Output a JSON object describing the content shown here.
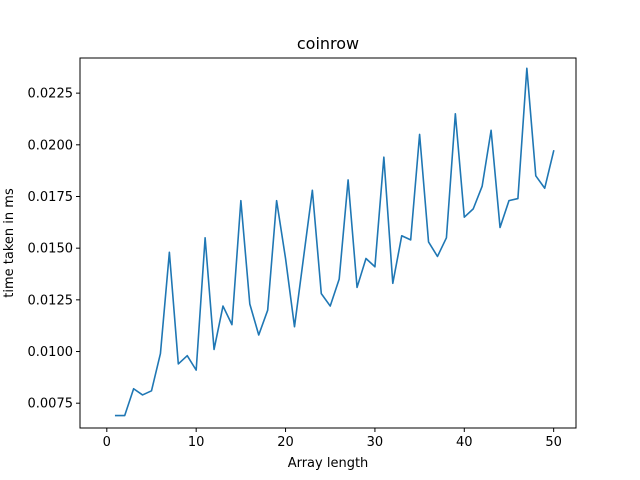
{
  "chart_data": {
    "type": "line",
    "title": "coinrow",
    "xlabel": "Array length",
    "ylabel": "time taken in ms",
    "xlim": [
      -3.0,
      52.5
    ],
    "ylim": [
      0.0063,
      0.0242
    ],
    "xticks": [
      0,
      10,
      20,
      30,
      40,
      50
    ],
    "yticks": [
      0.0075,
      0.01,
      0.0125,
      0.015,
      0.0175,
      0.02,
      0.0225
    ],
    "ytick_labels": [
      "0.0075",
      "0.0100",
      "0.0125",
      "0.0150",
      "0.0175",
      "0.0200",
      "0.0225"
    ],
    "grid": false,
    "line_color": "#1f77b4",
    "series": [
      {
        "x": [
          1,
          2,
          3,
          4,
          5,
          6,
          7,
          8,
          9,
          10,
          11,
          12,
          13,
          14,
          15,
          16,
          17,
          18,
          19,
          20,
          21,
          22,
          23,
          24,
          25,
          26,
          27,
          28,
          29,
          30,
          31,
          32,
          33,
          34,
          35,
          36,
          37,
          38,
          39,
          40,
          41,
          42,
          43,
          44,
          45,
          46,
          47,
          48,
          49,
          50
        ],
        "values": [
          0.0069,
          0.0069,
          0.0082,
          0.0079,
          0.0081,
          0.0099,
          0.0148,
          0.0094,
          0.0098,
          0.0091,
          0.0155,
          0.0101,
          0.0122,
          0.0113,
          0.0173,
          0.0123,
          0.0108,
          0.012,
          0.0173,
          0.0145,
          0.0112,
          0.0145,
          0.0178,
          0.0128,
          0.0122,
          0.0135,
          0.0183,
          0.0131,
          0.0145,
          0.0141,
          0.0194,
          0.0133,
          0.0156,
          0.0154,
          0.0205,
          0.0153,
          0.0146,
          0.0155,
          0.0215,
          0.0165,
          0.0169,
          0.018,
          0.0207,
          0.016,
          0.0173,
          0.0174,
          0.0237,
          0.0185,
          0.0179,
          0.0197
        ]
      }
    ]
  }
}
